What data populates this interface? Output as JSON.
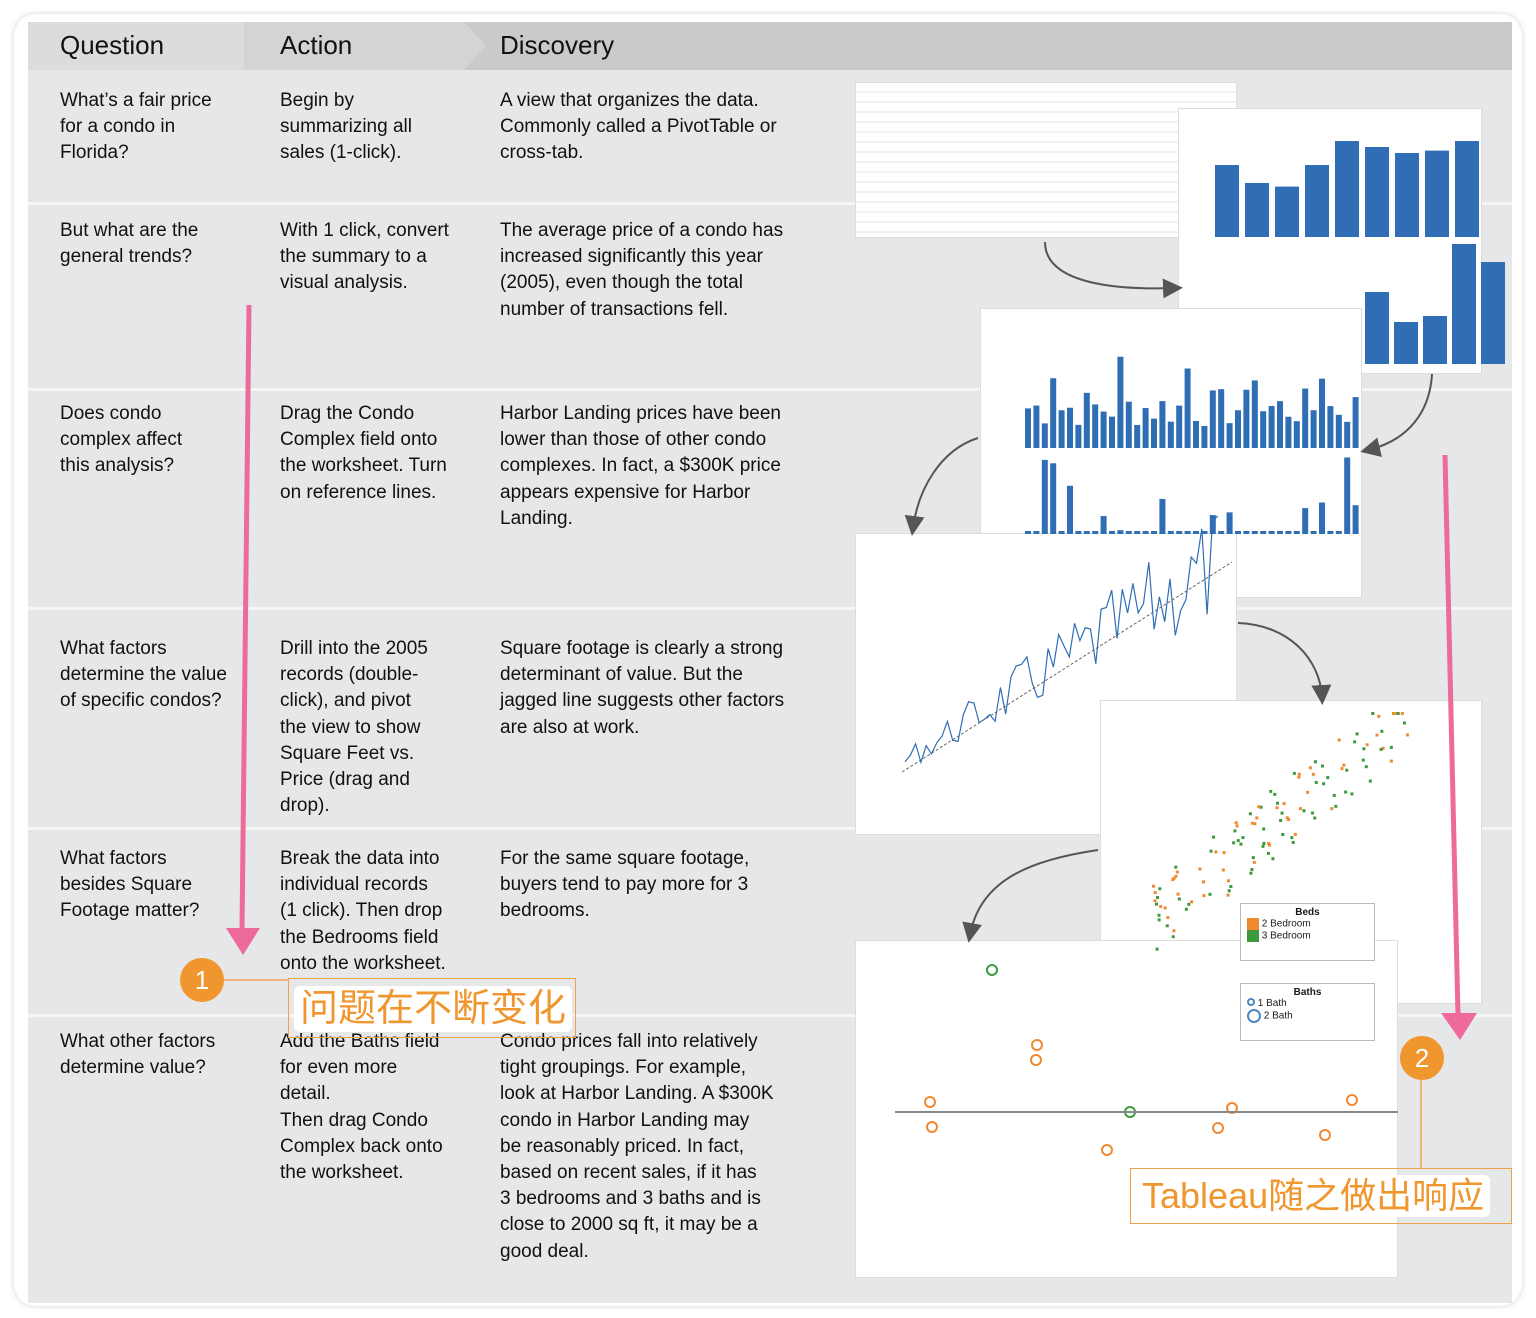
{
  "header": {
    "question": "Question",
    "action": "Action",
    "discovery": "Discovery"
  },
  "rows": [
    {
      "question": "What’s a fair price\nfor a condo in\nFlorida?",
      "action": "Begin by\nsummarizing all\nsales (1-click).",
      "discovery": "A view that organizes the data.\nCommonly called a PivotTable or\ncross-tab."
    },
    {
      "question": "But what are the\ngeneral trends?",
      "action": "With 1 click, convert\nthe summary to a\nvisual analysis.",
      "discovery": "The average price of a condo has\nincreased significantly this year\n(2005), even though the total\nnumber of transactions fell."
    },
    {
      "question": "Does condo\ncomplex affect\nthis analysis?",
      "action": "Drag the Condo\nComplex field onto\nthe worksheet. Turn\non reference lines.",
      "discovery": "Harbor Landing prices have been\nlower than those of other condo\ncomplexes. In fact, a $300K price\nappears expensive for Harbor\nLanding."
    },
    {
      "question": " What factors\ndetermine the value\nof specific condos?",
      "action": "Drill into the 2005\nrecords (double-\nclick), and pivot\nthe view to show\nSquare Feet vs.\nPrice (drag and\ndrop).",
      "discovery": "Square footage is clearly a strong\ndeterminant of value. But the\njagged line suggests other factors\nare also at work."
    },
    {
      "question": "What factors\nbesides Square\nFootage matter?",
      "action": "Break the data into\nindividual records\n(1 click). Then drop\nthe Bedrooms field\nonto the worksheet.",
      "discovery": "For the same square footage,\nbuyers tend to pay more for 3\nbedrooms."
    },
    {
      "question": "What other factors\ndetermine value?",
      "action": "Add the Baths field\nfor even more\ndetail.\nThen drag Condo\nComplex back onto\nthe worksheet.",
      "discovery": "Condo prices fall into relatively\ntight groupings. For example,\nlook at Harbor Landing. A $300K\ncondo in Harbor Landing may\nbe reasonably priced. In fact,\nbased on recent sales, if it has\n3 bedrooms and 3 baths and is\nclose to 2000 sq ft, it may be a\ngood deal."
    }
  ],
  "annotations": [
    {
      "number": "1",
      "text": "问题在不断变化"
    },
    {
      "number": "2",
      "text": "Tableau随之做出响应"
    }
  ],
  "legends": {
    "beds_title": "Beds",
    "beds": [
      "2 Bedroom",
      "3 Bedroom"
    ],
    "baths_title": "Baths",
    "baths": [
      "1 Bath",
      "2 Bath"
    ]
  },
  "colors": {
    "accent": "#f0962e",
    "arrow": "#ee6a9b",
    "bar": "#2f6eb4",
    "orange": "#f08a30",
    "green": "#3c9a3c"
  }
}
